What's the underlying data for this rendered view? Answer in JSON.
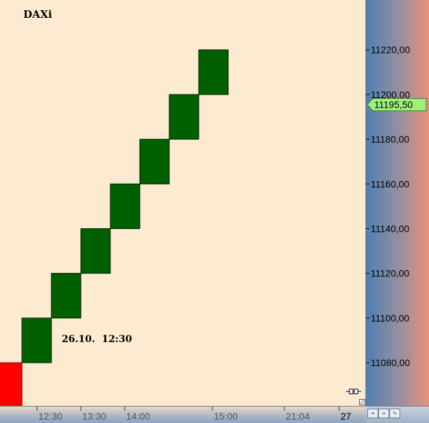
{
  "chart_data": {
    "type": "renko",
    "title": "DAXi",
    "annotation": "26.10.  12:30",
    "brick_size": 20,
    "current_price": 11195.5,
    "current_price_label": "11195,50",
    "colors": {
      "up": "#006000",
      "down": "#ff0000",
      "background": "#fdebd1",
      "price_marker": "#9ef07a"
    },
    "bricks": [
      {
        "low": 11060,
        "high": 11080,
        "direction": "down"
      },
      {
        "low": 11080,
        "high": 11100,
        "direction": "up"
      },
      {
        "low": 11100,
        "high": 11120,
        "direction": "up"
      },
      {
        "low": 11120,
        "high": 11140,
        "direction": "up"
      },
      {
        "low": 11140,
        "high": 11160,
        "direction": "up"
      },
      {
        "low": 11160,
        "high": 11180,
        "direction": "up"
      },
      {
        "low": 11180,
        "high": 11200,
        "direction": "up"
      },
      {
        "low": 11200,
        "high": 11220,
        "direction": "up"
      }
    ],
    "y_ticks": [
      11080,
      11100,
      11120,
      11140,
      11160,
      11180,
      11200,
      11220
    ],
    "y_tick_labels": [
      "11080,00",
      "11100,00",
      "11120,00",
      "11140,00",
      "11160,00",
      "11180,00",
      "11200,00",
      "11220,00"
    ],
    "ylim": [
      11060.7,
      11242.3
    ],
    "x_tick_labels": [
      "12:30",
      "13:30",
      "14:00",
      "15:00",
      "21:04",
      "27"
    ],
    "grid": false
  },
  "toolbar": {
    "icons": [
      "scroll-arrows-icon",
      "zoom-arrows-icon",
      "chart-wave-icon"
    ]
  }
}
